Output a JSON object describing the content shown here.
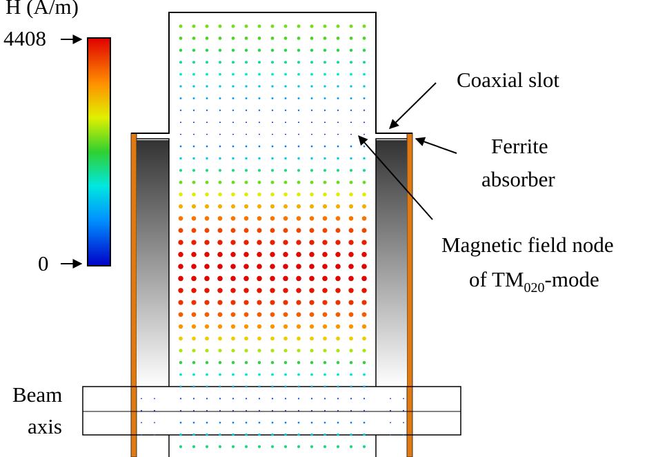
{
  "colorbar": {
    "label": "H  (A/m)",
    "max": 4408,
    "min": 0
  },
  "annotations": {
    "coaxial_slot": "Coaxial slot",
    "ferrite": [
      "Ferrite",
      "absorber"
    ],
    "node": {
      "line1": "Magnetic field node",
      "prefix": "of TM",
      "subscript": "020",
      "suffix": "-mode"
    },
    "beam_axis": [
      "Beam",
      "axis"
    ]
  }
}
